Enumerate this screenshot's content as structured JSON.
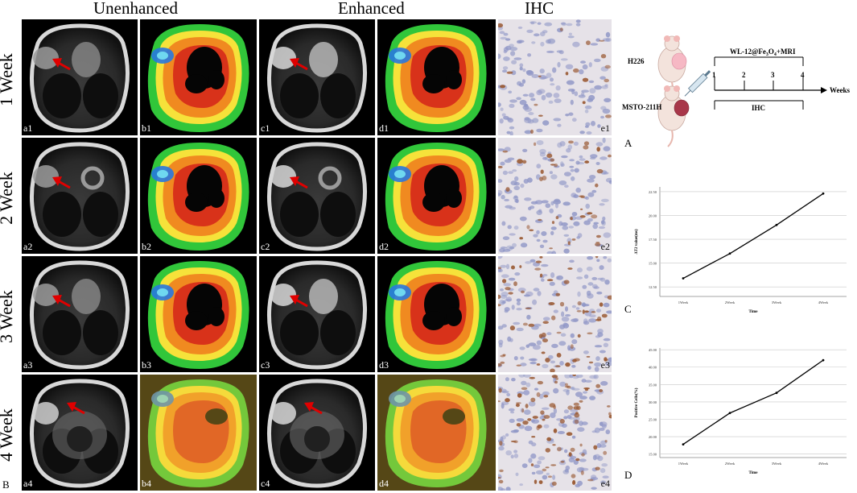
{
  "headers": {
    "unenhanced": "Unenhanced",
    "enhanced": "Enhanced",
    "ihc": "IHC"
  },
  "rows": [
    "1 Week",
    "2 Week",
    "3 Week",
    "4 Week"
  ],
  "panel_tags": {
    "a": [
      "a1",
      "a2",
      "a3",
      "a4"
    ],
    "b": [
      "b1",
      "b2",
      "b3",
      "b4"
    ],
    "c": [
      "c1",
      "c2",
      "c3",
      "c4"
    ],
    "d": [
      "d1",
      "d2",
      "d3",
      "d4"
    ],
    "e": [
      "e1",
      "e2",
      "e3",
      "e4"
    ]
  },
  "side_letters": {
    "A": "A",
    "B": "B",
    "C": "C",
    "D": "D"
  },
  "schema": {
    "cell_line_1": "H226",
    "cell_line_2": "MSTO-211H",
    "protocol_prefix": "WL-12@Fe",
    "protocol_sub1": "3",
    "protocol_mid": "O",
    "protocol_sub2": "4",
    "protocol_suffix": "+MRI",
    "weeks": [
      "1",
      "2",
      "3",
      "4"
    ],
    "axis_label": "Weeks",
    "ihc_label": "IHC"
  },
  "chart_data": [
    {
      "type": "line",
      "panel": "C",
      "categories": [
        "1Week",
        "2Week",
        "3Week",
        "4Week"
      ],
      "values": [
        13.4,
        16.0,
        19.0,
        22.3
      ],
      "ylabel": "ΔT2 value(ms)",
      "xlabel": "Time",
      "yticks": [
        "12.50",
        "15.00",
        "17.50",
        "20.00",
        "22.50"
      ],
      "ylim": [
        11.5,
        23.0
      ],
      "grid": true
    },
    {
      "type": "line",
      "panel": "D",
      "categories": [
        "1Week",
        "2Week",
        "3Week",
        "4Week"
      ],
      "values": [
        17.8,
        26.8,
        32.6,
        42.0
      ],
      "ylabel": "Positive Cells(%)",
      "xlabel": "Time",
      "yticks": [
        "15.00",
        "20.00",
        "25.00",
        "30.00",
        "35.00",
        "40.00",
        "45.00"
      ],
      "ylim": [
        14.0,
        45.5
      ],
      "grid": true
    }
  ]
}
